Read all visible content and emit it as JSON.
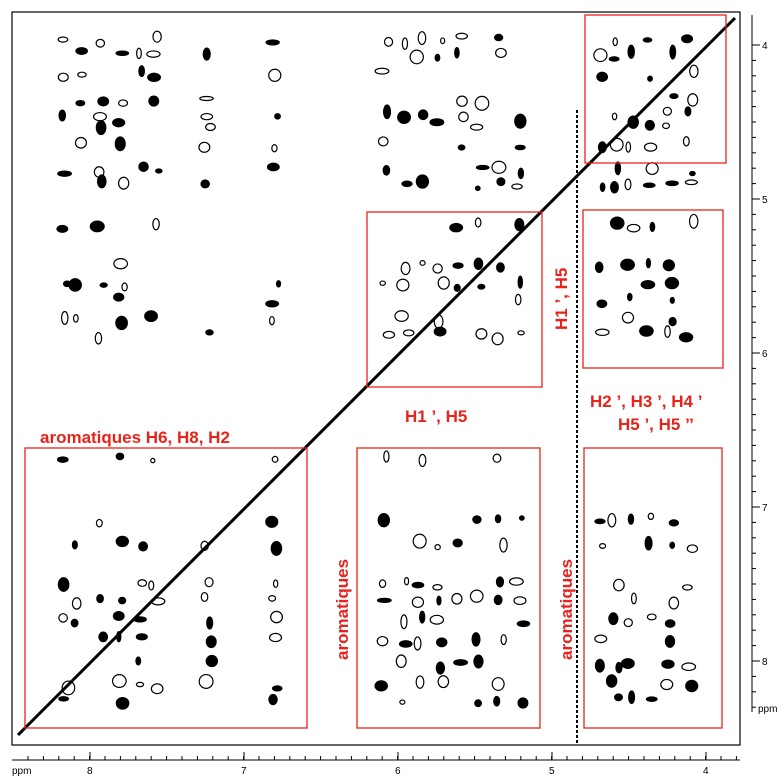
{
  "labels": {
    "aromatic_region": "aromatiques H6, H8, H2",
    "h1_h5": "H1 ’, H5",
    "sugar_line1": "H2 ’, H3 ’, H4 ’",
    "sugar_line2": "H5 ’, H5 ’’",
    "vertical_h1_h5": "H1 ’, H5",
    "vertical_aromatic_1": "aromatiques",
    "vertical_aromatic_2": "aromatiques"
  },
  "right_axis": {
    "ticks": [
      "4",
      "5",
      "6",
      "7",
      "8"
    ],
    "unit": "ppm"
  },
  "bottom_axis": {
    "ticks": [
      "8",
      "7",
      "6",
      "5",
      "4"
    ],
    "unit": "ppm"
  }
}
